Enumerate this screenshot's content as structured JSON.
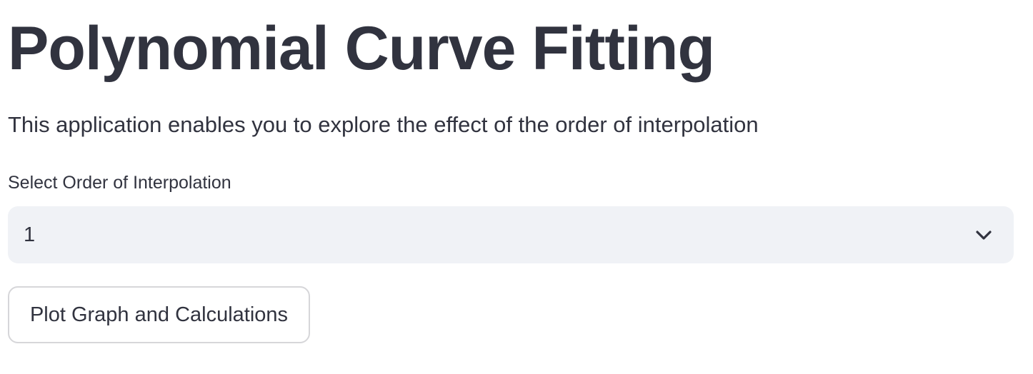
{
  "header": {
    "title": "Polynomial Curve Fitting"
  },
  "main": {
    "description": "This application enables you to explore the effect of the order of interpolation",
    "order_select": {
      "label": "Select Order of Interpolation",
      "selected_value": "1",
      "icon": "chevron-down-icon"
    },
    "plot_button": {
      "label": "Plot Graph and Calculations"
    }
  },
  "colors": {
    "text": "#31333f",
    "select_background": "#f0f2f6",
    "button_border": "#d6d6d9",
    "page_background": "#ffffff"
  }
}
